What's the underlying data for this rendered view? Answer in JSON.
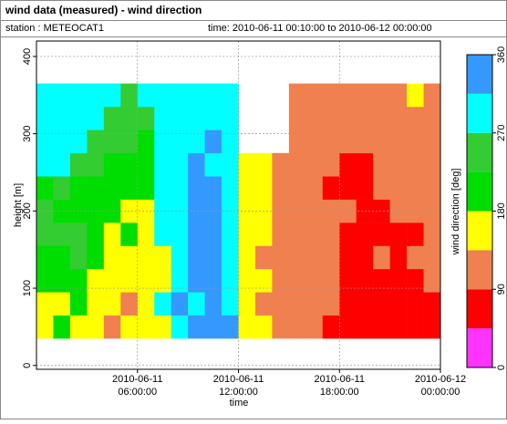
{
  "chart_data": {
    "type": "heatmap",
    "title": "wind data (measured) - wind direction",
    "station": "station : METEOCAT1",
    "period": "time: 2010-06-11 00:10:00 to 2010-06-12 00:00:00",
    "xlabel": "time",
    "ylabel": "height [m]",
    "colorbar_label": "wind direction [deg]",
    "x": [
      "2010-06-11 00:30:00",
      "2010-06-11 01:30:00",
      "2010-06-11 02:30:00",
      "2010-06-11 03:30:00",
      "2010-06-11 04:30:00",
      "2010-06-11 05:30:00",
      "2010-06-11 06:30:00",
      "2010-06-11 07:30:00",
      "2010-06-11 08:30:00",
      "2010-06-11 09:30:00",
      "2010-06-11 10:30:00",
      "2010-06-11 11:30:00",
      "2010-06-11 12:30:00",
      "2010-06-11 13:30:00",
      "2010-06-11 14:30:00",
      "2010-06-11 15:30:00",
      "2010-06-11 16:30:00",
      "2010-06-11 17:30:00",
      "2010-06-11 18:30:00",
      "2010-06-11 19:30:00",
      "2010-06-11 20:30:00",
      "2010-06-11 21:30:00",
      "2010-06-11 22:30:00",
      "2010-06-11 23:30:00"
    ],
    "y": [
      50,
      80,
      110,
      140,
      170,
      200,
      230,
      260,
      290,
      320,
      350
    ],
    "values": [
      [
        160,
        160,
        200,
        200,
        250,
        250,
        200,
        290,
        290,
        290,
        290
      ],
      [
        200,
        160,
        200,
        200,
        250,
        200,
        250,
        290,
        290,
        290,
        290
      ],
      [
        160,
        200,
        200,
        250,
        250,
        200,
        200,
        250,
        290,
        290,
        290
      ],
      [
        160,
        160,
        160,
        200,
        200,
        200,
        200,
        250,
        250,
        290,
        290
      ],
      [
        110,
        160,
        160,
        160,
        160,
        200,
        200,
        200,
        250,
        250,
        290
      ],
      [
        160,
        110,
        160,
        160,
        200,
        160,
        200,
        200,
        250,
        250,
        250
      ],
      [
        160,
        160,
        160,
        160,
        160,
        160,
        200,
        200,
        200,
        250,
        290
      ],
      [
        160,
        290,
        160,
        160,
        290,
        290,
        290,
        290,
        290,
        290,
        290
      ],
      [
        290,
        340,
        290,
        290,
        290,
        290,
        290,
        290,
        290,
        290,
        290
      ],
      [
        340,
        290,
        340,
        340,
        340,
        340,
        340,
        340,
        290,
        290,
        290
      ],
      [
        340,
        340,
        340,
        340,
        340,
        340,
        340,
        290,
        340,
        290,
        290
      ],
      [
        340,
        290,
        290,
        290,
        290,
        290,
        290,
        290,
        290,
        290,
        290
      ],
      [
        160,
        160,
        160,
        160,
        160,
        160,
        160,
        160,
        null,
        null,
        null
      ],
      [
        160,
        110,
        160,
        110,
        160,
        160,
        160,
        160,
        null,
        null,
        null
      ],
      [
        110,
        110,
        110,
        110,
        110,
        110,
        110,
        110,
        null,
        null,
        null
      ],
      [
        110,
        110,
        110,
        110,
        110,
        110,
        110,
        110,
        110,
        110,
        110
      ],
      [
        110,
        110,
        110,
        110,
        110,
        110,
        110,
        110,
        110,
        110,
        110
      ],
      [
        70,
        110,
        110,
        110,
        110,
        110,
        70,
        110,
        110,
        110,
        110
      ],
      [
        70,
        70,
        70,
        70,
        70,
        110,
        70,
        70,
        110,
        110,
        110
      ],
      [
        70,
        70,
        70,
        70,
        70,
        70,
        70,
        70,
        110,
        110,
        110
      ],
      [
        70,
        70,
        70,
        110,
        70,
        70,
        110,
        110,
        110,
        110,
        110
      ],
      [
        70,
        70,
        70,
        70,
        70,
        110,
        110,
        110,
        110,
        110,
        110
      ],
      [
        70,
        70,
        70,
        110,
        70,
        110,
        110,
        110,
        110,
        110,
        160
      ],
      [
        70,
        70,
        110,
        110,
        110,
        110,
        110,
        110,
        110,
        110,
        110
      ]
    ],
    "xlim": [
      "2010-06-11 00:00:00",
      "2010-06-12 00:00:00"
    ],
    "xticks": [
      {
        "value": "2010-06-11 06:00:00",
        "label": "2010-06-11\n06:00:00"
      },
      {
        "value": "2010-06-11 12:00:00",
        "label": "2010-06-11\n12:00:00"
      },
      {
        "value": "2010-06-11 18:00:00",
        "label": "2010-06-11\n18:00:00"
      },
      {
        "value": "2010-06-12 00:00:00",
        "label": "2010-06-12\n00:00:00"
      }
    ],
    "ylim": [
      -5,
      420
    ],
    "yticks": [
      0,
      100,
      200,
      300,
      400
    ],
    "clim": [
      0,
      360
    ],
    "cticks": [
      0,
      90,
      180,
      270,
      360
    ],
    "colors": [
      "#ff33ff",
      "#ff0000",
      "#f08050",
      "#ffff00",
      "#00dd00",
      "#33cc33",
      "#00ffff",
      "#3399ff"
    ],
    "grid": true
  }
}
